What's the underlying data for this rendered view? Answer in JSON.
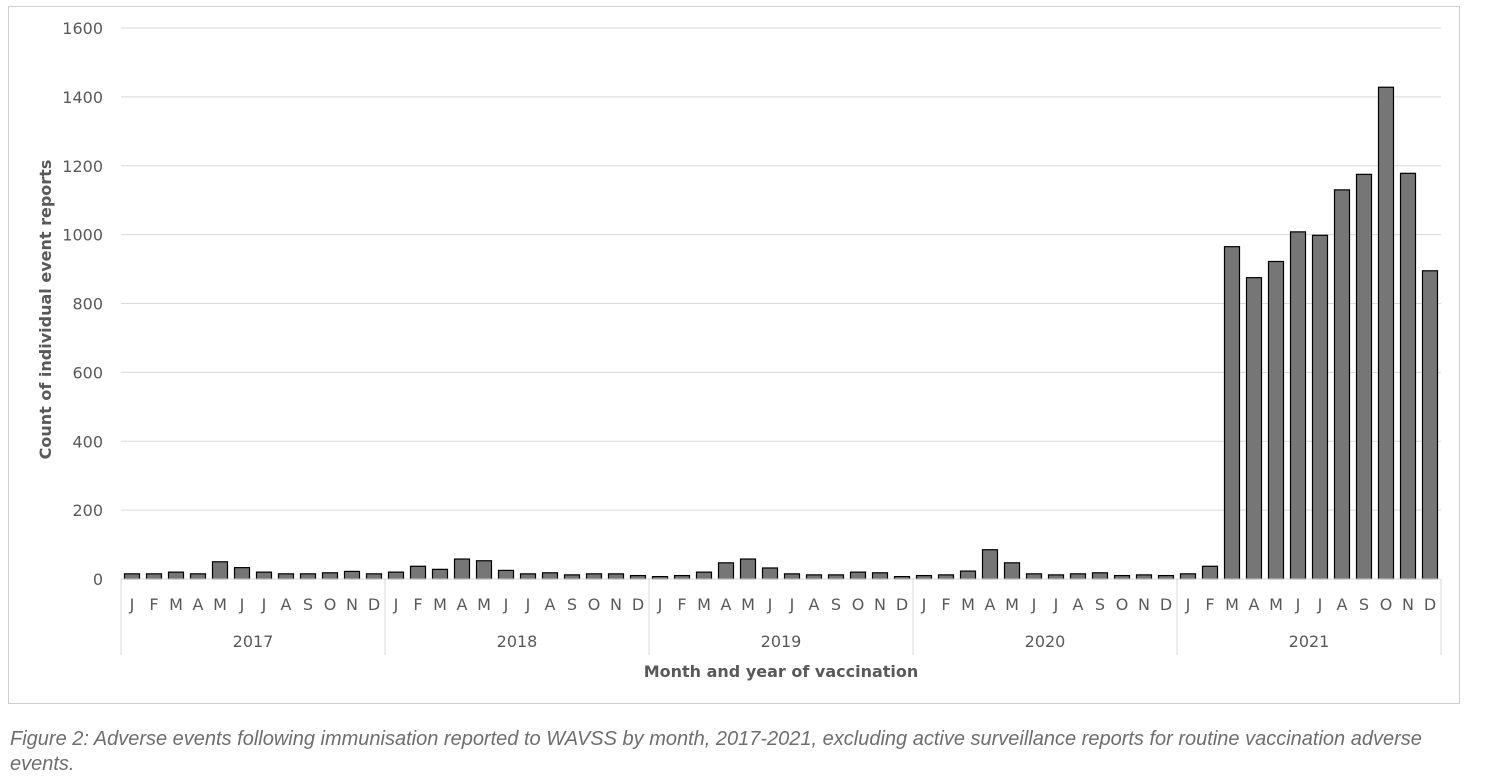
{
  "caption": "Figure 2: Adverse events following immunisation reported to WAVSS by month, 2017-2021, excluding active surveillance reports for routine vaccination adverse events.",
  "chart_data": {
    "type": "bar",
    "title": "",
    "xlabel": "Month and year of vaccination",
    "ylabel": "Count of individual event reports",
    "ylim": [
      0,
      1600
    ],
    "yticks": [
      "0",
      "200",
      "400",
      "600",
      "800",
      "1000",
      "1200",
      "1400",
      "1600"
    ],
    "grid": true,
    "legend": "none",
    "bar_color": "#767676",
    "bar_edge_color": "#000000",
    "month_labels": [
      "J",
      "F",
      "M",
      "A",
      "M",
      "J",
      "J",
      "A",
      "S",
      "O",
      "N",
      "D"
    ],
    "years": [
      "2017",
      "2018",
      "2019",
      "2020",
      "2021"
    ],
    "values": [
      15,
      15,
      20,
      15,
      50,
      33,
      20,
      15,
      15,
      18,
      22,
      15,
      20,
      37,
      28,
      58,
      53,
      25,
      15,
      18,
      12,
      15,
      15,
      10,
      7,
      10,
      20,
      47,
      58,
      32,
      15,
      12,
      12,
      20,
      18,
      7,
      10,
      12,
      23,
      85,
      47,
      15,
      12,
      15,
      18,
      10,
      12,
      10,
      15,
      37,
      965,
      875,
      922,
      1008,
      998,
      1130,
      1175,
      1428,
      1178,
      895
    ]
  }
}
